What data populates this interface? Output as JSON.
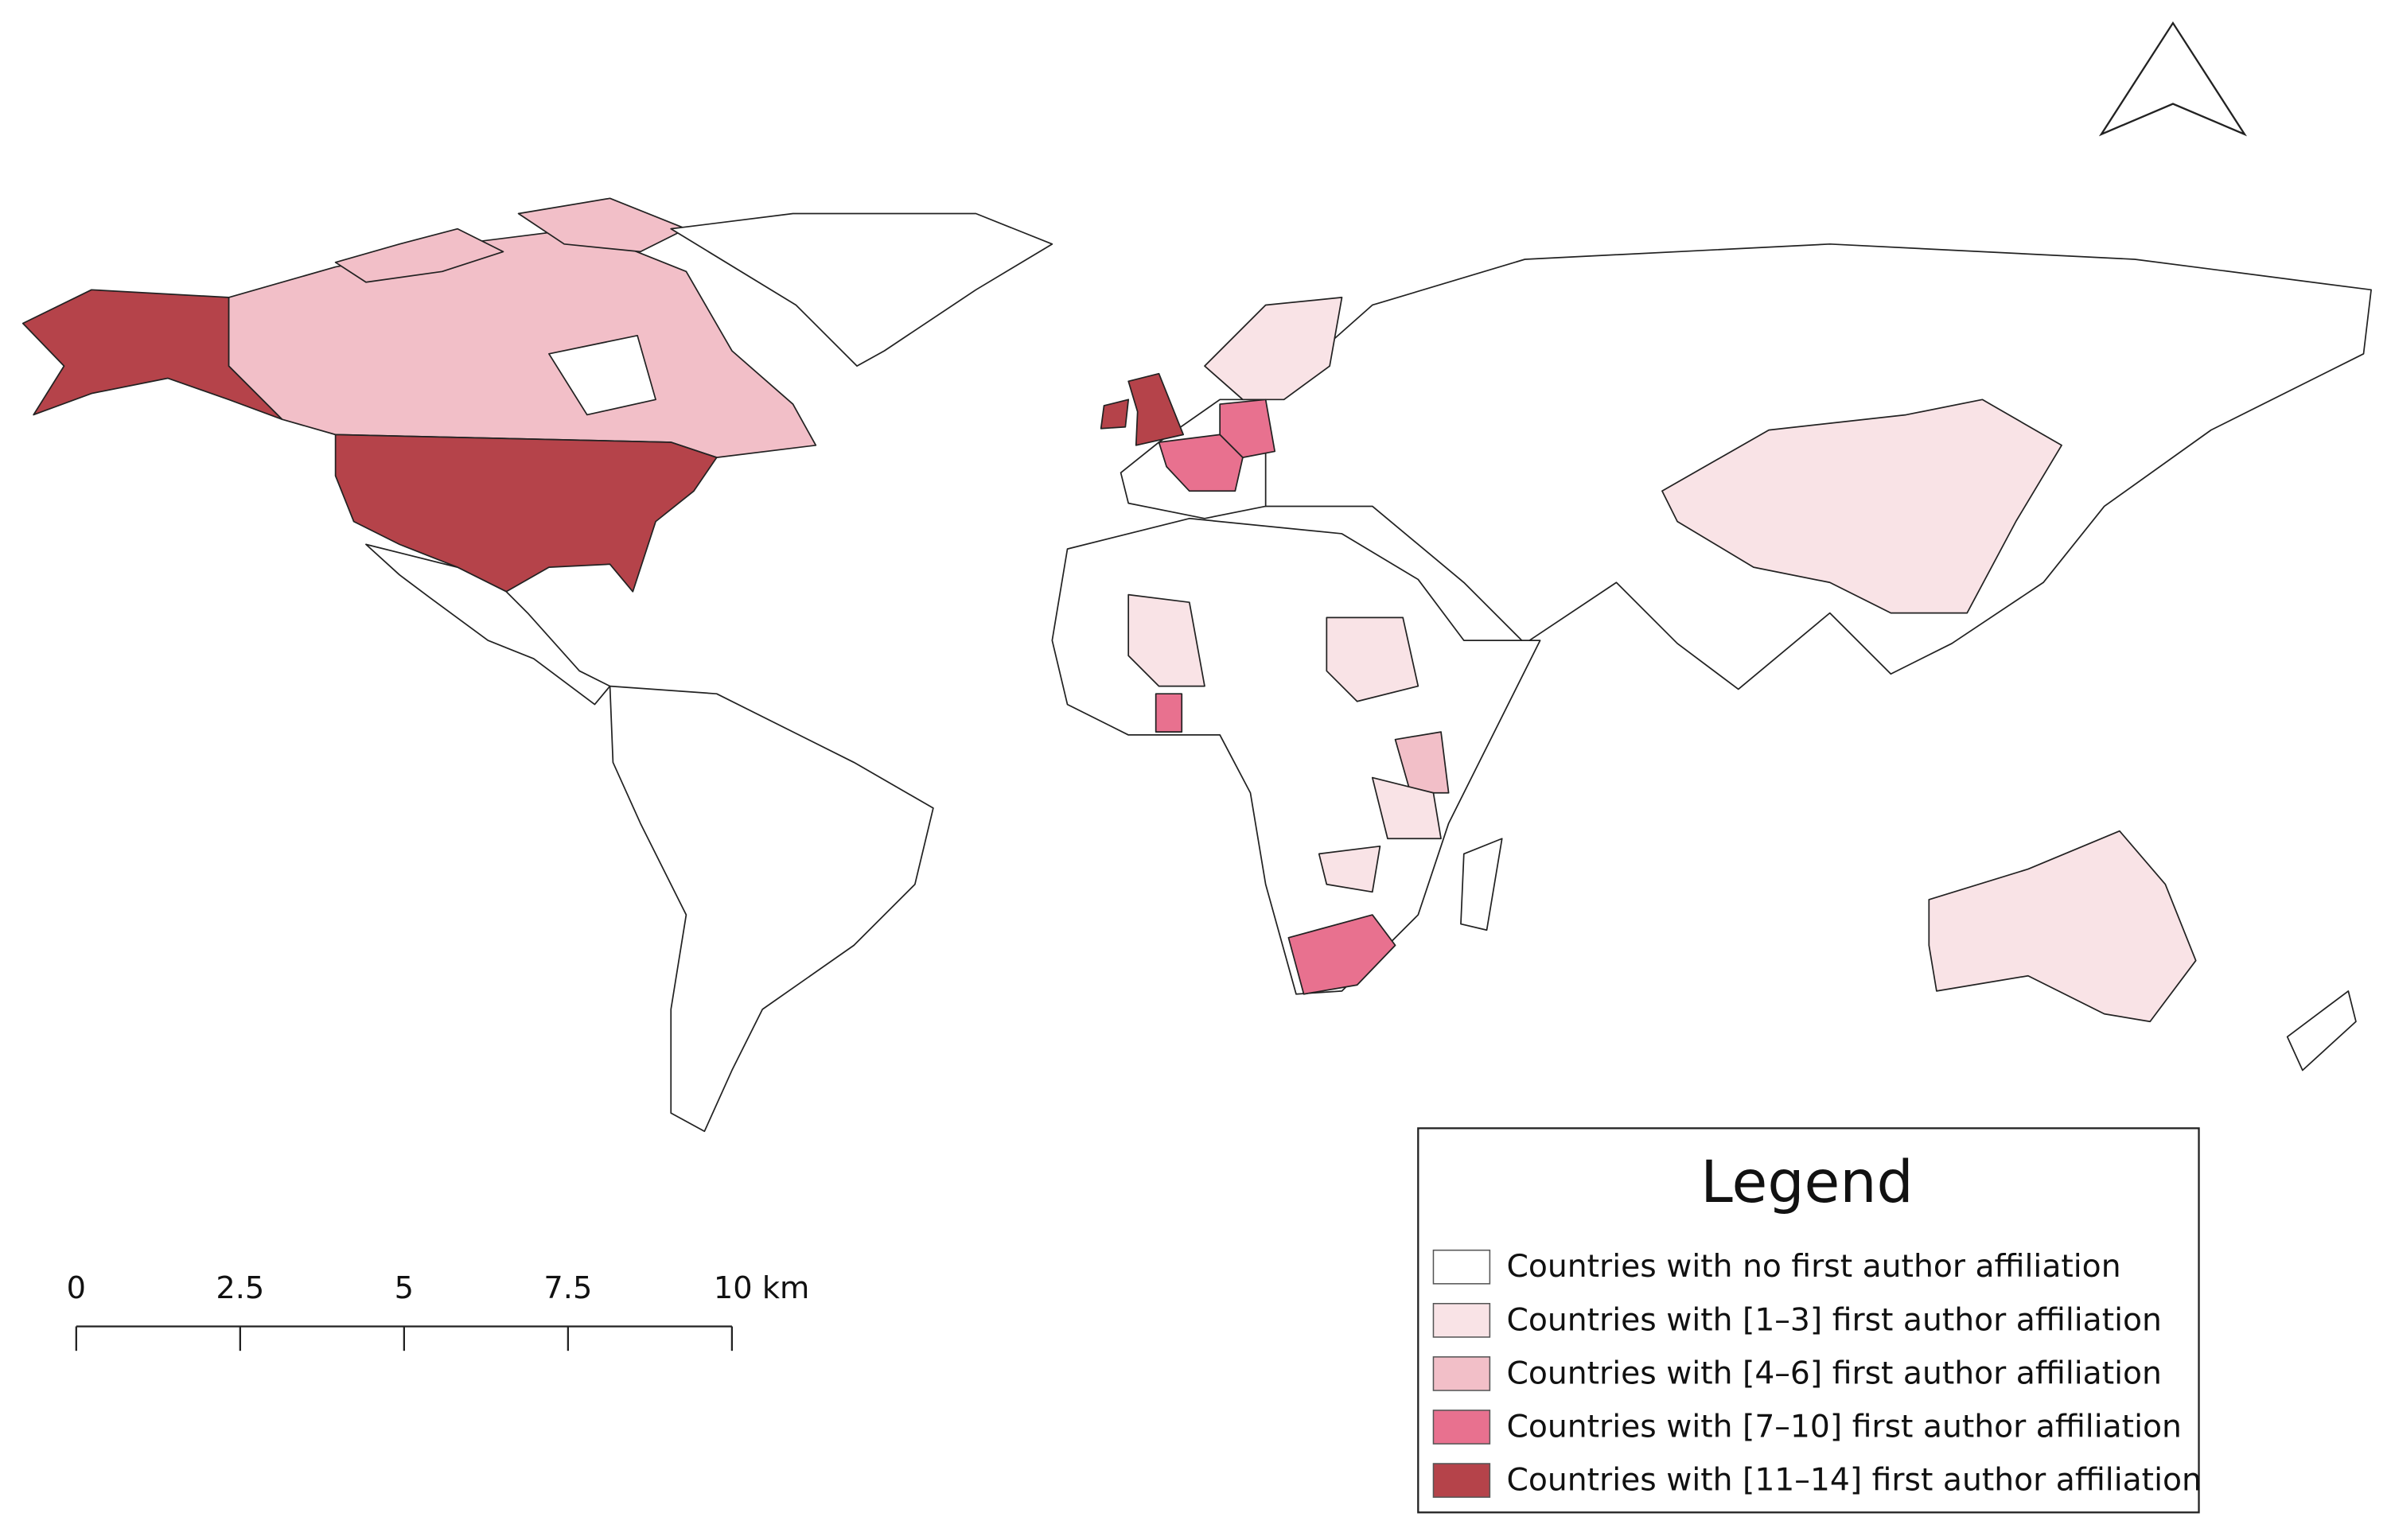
{
  "map": {
    "legend": {
      "title": "Legend",
      "items": [
        {
          "label": "Countries with no first author affiliation",
          "color": "#ffffff"
        },
        {
          "label": "Countries with [1–3] first author affiliation",
          "color": "#f9e3e6"
        },
        {
          "label": "Countries with [4–6] first author affiliation",
          "color": "#f2bfc8"
        },
        {
          "label": "Countries with [7–10] first author affiliation",
          "color": "#e8718f"
        },
        {
          "label": "Countries with [11–14] first author affiliation",
          "color": "#b5434a"
        }
      ]
    },
    "scale_bar": {
      "labels": [
        "0",
        "2.5",
        "5",
        "7.5",
        "10 km"
      ]
    }
  }
}
